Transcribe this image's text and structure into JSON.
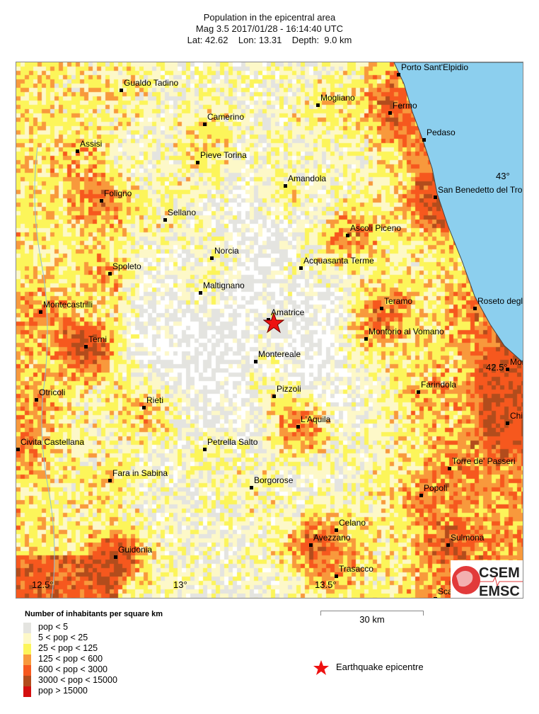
{
  "header": {
    "title": "Population in the epicentral area",
    "line2": "Mag 3.5  2017/01/28 - 16:14:40 UTC",
    "line3": "Lat: 42.62    Lon: 13.31    Depth:  9.0 km"
  },
  "event": {
    "lat": 42.62,
    "lon": 13.31,
    "depth_km": 9.0,
    "magnitude": 3.5
  },
  "map": {
    "lon_ticks": [
      {
        "value": 12.5,
        "label": "12.5°"
      },
      {
        "value": 13,
        "label": "13°"
      },
      {
        "value": 13.5,
        "label": "13.5°"
      }
    ],
    "lat_ticks": [
      {
        "value": 43,
        "label": "43°"
      },
      {
        "value": 42.5,
        "label": "42.5°"
      }
    ],
    "sea_color": "#8ccfee",
    "towns": [
      {
        "name": "Gualdo Tadino",
        "lon": 12.77,
        "lat": 43.23
      },
      {
        "name": "Camerino",
        "lon": 13.065,
        "lat": 43.14
      },
      {
        "name": "Mogliano",
        "lon": 13.465,
        "lat": 43.19
      },
      {
        "name": "Fermo",
        "lon": 13.72,
        "lat": 43.17
      },
      {
        "name": "Porto Sant'Elpidio",
        "lon": 13.75,
        "lat": 43.27
      },
      {
        "name": "Assisi",
        "lon": 12.615,
        "lat": 43.07
      },
      {
        "name": "Pieve Torina",
        "lon": 13.04,
        "lat": 43.04
      },
      {
        "name": "Pedaso",
        "lon": 13.84,
        "lat": 43.1
      },
      {
        "name": "Amandola",
        "lon": 13.35,
        "lat": 42.98
      },
      {
        "name": "San Benedetto del Tronto",
        "lon": 13.88,
        "lat": 42.95
      },
      {
        "name": "Foligno",
        "lon": 12.7,
        "lat": 42.94
      },
      {
        "name": "Sellano",
        "lon": 12.925,
        "lat": 42.89
      },
      {
        "name": "Ascoli Piceno",
        "lon": 13.57,
        "lat": 42.85
      },
      {
        "name": "Norcia",
        "lon": 13.09,
        "lat": 42.79
      },
      {
        "name": "Acquasanta Terme",
        "lon": 13.405,
        "lat": 42.765
      },
      {
        "name": "Spoleto",
        "lon": 12.73,
        "lat": 42.75
      },
      {
        "name": "Maltignano",
        "lon": 13.05,
        "lat": 42.7
      },
      {
        "name": "Montecastrilli",
        "lon": 12.485,
        "lat": 42.65
      },
      {
        "name": "Teramo",
        "lon": 13.69,
        "lat": 42.66
      },
      {
        "name": "Roseto degli Abruzzi",
        "lon": 14.02,
        "lat": 42.66
      },
      {
        "name": "Amatrice",
        "lon": 13.29,
        "lat": 42.63
      },
      {
        "name": "Terni",
        "lon": 12.645,
        "lat": 42.56
      },
      {
        "name": "Montorio al Vomano",
        "lon": 13.635,
        "lat": 42.58
      },
      {
        "name": "Montereale",
        "lon": 13.245,
        "lat": 42.52
      },
      {
        "name": "Montesilvano",
        "lon": 14.135,
        "lat": 42.5
      },
      {
        "name": "Otricoli",
        "lon": 12.47,
        "lat": 42.42
      },
      {
        "name": "Farindola",
        "lon": 13.82,
        "lat": 42.44
      },
      {
        "name": "Pizzoli",
        "lon": 13.31,
        "lat": 42.43
      },
      {
        "name": "Rieti",
        "lon": 12.85,
        "lat": 42.4
      },
      {
        "name": "L'Aquila",
        "lon": 13.395,
        "lat": 42.35
      },
      {
        "name": "Chieti",
        "lon": 14.135,
        "lat": 42.36
      },
      {
        "name": "Civita Castellana",
        "lon": 12.405,
        "lat": 42.29
      },
      {
        "name": "Petrella Salto",
        "lon": 13.065,
        "lat": 42.29
      },
      {
        "name": "Torre de' Passeri",
        "lon": 13.93,
        "lat": 42.24
      },
      {
        "name": "Fara in Sabina",
        "lon": 12.73,
        "lat": 42.21
      },
      {
        "name": "Borgorose",
        "lon": 13.23,
        "lat": 42.19
      },
      {
        "name": "Popoli",
        "lon": 13.83,
        "lat": 42.17
      },
      {
        "name": "Celano",
        "lon": 13.53,
        "lat": 42.08
      },
      {
        "name": "Avezzano",
        "lon": 13.44,
        "lat": 42.04
      },
      {
        "name": "Sulmona",
        "lon": 13.925,
        "lat": 42.04
      },
      {
        "name": "Guidonia",
        "lon": 12.75,
        "lat": 42.01
      },
      {
        "name": "Trasacco",
        "lon": 13.53,
        "lat": 41.96
      },
      {
        "name": "Scanno",
        "lon": 13.88,
        "lat": 41.9
      }
    ]
  },
  "logo": {
    "line1": "CSEM",
    "line2": "EMSC"
  },
  "legend": {
    "title": "Number of inhabitants per square km",
    "classes": [
      {
        "label": "pop < 5",
        "color": "#e4e4e0"
      },
      {
        "label": "5 < pop < 25",
        "color": "#fdf8c8"
      },
      {
        "label": "25 < pop < 125",
        "color": "#fcf55a"
      },
      {
        "label": "125 < pop < 600",
        "color": "#f8993c"
      },
      {
        "label": "600 < pop < 3000",
        "color": "#f6581e"
      },
      {
        "label": "3000 < pop < 15000",
        "color": "#b24c1c"
      },
      {
        "label": "pop > 15000",
        "color": "#d40f0f"
      }
    ],
    "scale_label": "30 km",
    "epicentre_label": "Earthquake epicentre",
    "epicentre_color": "#ee1111"
  }
}
